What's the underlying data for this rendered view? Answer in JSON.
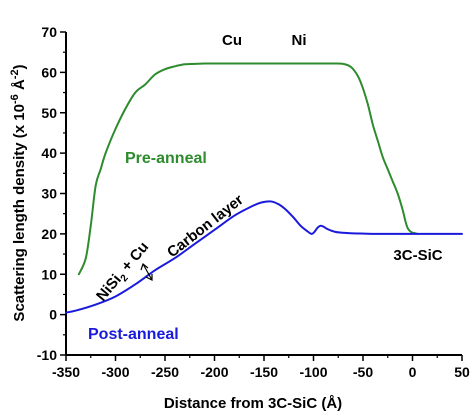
{
  "chart_data": {
    "type": "line",
    "xlabel": "Distance from 3C-SiC (Å)",
    "ylabel_main": "Scattering length density (x 10",
    "ylabel_exp": "-6",
    "ylabel_unit": " Å",
    "ylabel_unit_exp": "-2",
    "ylabel_close": ")",
    "xlim": [
      -350,
      50
    ],
    "ylim": [
      -10,
      70
    ],
    "xticks": [
      -350,
      -300,
      -250,
      -200,
      -150,
      -100,
      -50,
      0,
      50
    ],
    "yticks": [
      -10,
      0,
      10,
      20,
      30,
      40,
      50,
      60,
      70
    ],
    "grid": false,
    "series": [
      {
        "name": "Pre-anneal",
        "color": "#2e8b2e",
        "x": [
          -337,
          -330,
          -325,
          -320,
          -315,
          -310,
          -300,
          -290,
          -280,
          -270,
          -260,
          -250,
          -240,
          -230,
          -220,
          -210,
          -200,
          -180,
          -160,
          -140,
          -120,
          -100,
          -80,
          -70,
          -62,
          -55,
          -50,
          -45,
          -40,
          -35,
          -30,
          -25,
          -20,
          -15,
          -10,
          -7,
          -5,
          -3,
          -1,
          0,
          2,
          5
        ],
        "y": [
          10,
          14,
          22,
          32,
          36,
          40,
          46,
          51,
          55,
          57,
          59.5,
          60.8,
          61.5,
          62,
          62.1,
          62.2,
          62.2,
          62.2,
          62.2,
          62.2,
          62.2,
          62.2,
          62.2,
          62.1,
          61.3,
          59,
          56,
          52,
          47,
          43,
          39,
          36,
          33,
          30,
          26,
          23,
          21.5,
          20.8,
          20.4,
          20.3,
          20.2,
          20
        ]
      },
      {
        "name": "Post-anneal",
        "color": "#1a1adc",
        "x": [
          -350,
          -340,
          -320,
          -300,
          -280,
          -260,
          -240,
          -220,
          -200,
          -180,
          -165,
          -155,
          -148,
          -142,
          -135,
          -128,
          -120,
          -113,
          -107,
          -102,
          -99,
          -96,
          -93,
          -90,
          -86,
          -82,
          -78,
          -72,
          -65,
          -55,
          -40,
          -20,
          0,
          20,
          40,
          50
        ],
        "y": [
          0.5,
          1,
          2.5,
          4.5,
          7.5,
          11,
          14,
          17.5,
          21,
          24.5,
          26.5,
          27.6,
          28,
          28,
          27.3,
          26,
          24,
          22,
          20.8,
          20,
          20.5,
          21.5,
          22,
          21.8,
          21.2,
          20.8,
          20.5,
          20.3,
          20.2,
          20.1,
          20,
          20,
          20,
          20,
          20,
          20
        ]
      }
    ],
    "annotations": {
      "top_left": "Cu",
      "top_right": "Ni",
      "pre_label": "Pre-anneal",
      "post_label": "Post-anneal",
      "substrate": "3C-SiC",
      "carbon": "Carbon layer",
      "nisi_main": "NiSi",
      "nisi_sub": "2",
      "nisi_rest": " + Cu"
    }
  }
}
